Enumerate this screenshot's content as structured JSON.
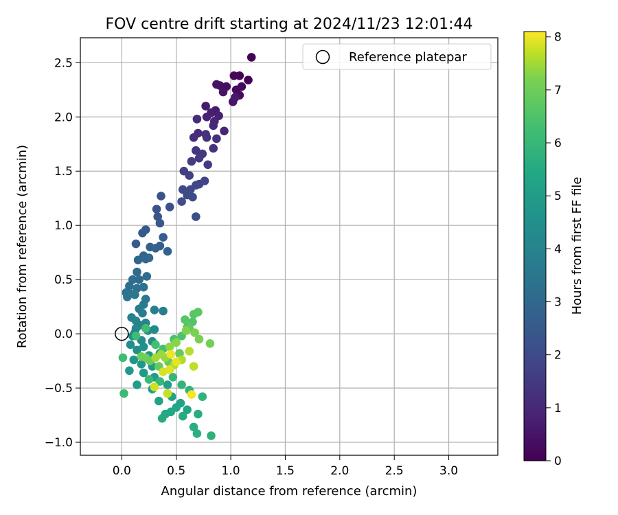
{
  "chart_data": {
    "type": "scatter",
    "title": "FOV centre drift starting at 2024/11/23 12:01:44",
    "xlabel": "Angular distance from reference (arcmin)",
    "ylabel": "Rotation from reference (arcmin)",
    "xlim": [
      -0.38,
      3.45
    ],
    "ylim": [
      -1.12,
      2.73
    ],
    "xticks": [
      0.0,
      0.5,
      1.0,
      1.5,
      2.0,
      2.5,
      3.0
    ],
    "xtick_labels": [
      "0.0",
      "0.5",
      "1.0",
      "1.5",
      "2.0",
      "2.5",
      "3.0"
    ],
    "yticks": [
      -1.0,
      -0.5,
      0.0,
      0.5,
      1.0,
      1.5,
      2.0,
      2.5
    ],
    "ytick_labels": [
      "−1.0",
      "−0.5",
      "0.0",
      "0.5",
      "1.0",
      "1.5",
      "2.0",
      "2.5"
    ],
    "grid": true,
    "legend_position": "top-right",
    "legend": [
      {
        "label": "Reference platepar",
        "marker": "open-circle"
      }
    ],
    "reference_point": {
      "x": 0.0,
      "y": 0.0
    },
    "colorbar": {
      "label": "Hours from first FF file",
      "range": [
        0,
        8.1
      ],
      "ticks": [
        0,
        1,
        2,
        3,
        4,
        5,
        6,
        7,
        8
      ],
      "tick_labels": [
        "0",
        "1",
        "2",
        "3",
        "4",
        "5",
        "6",
        "7",
        "8"
      ],
      "colormap": "viridis"
    },
    "series": [
      {
        "points": [
          [
            1.19,
            2.55,
            0.0
          ],
          [
            1.16,
            2.34,
            0.05
          ],
          [
            1.08,
            2.38,
            0.1
          ],
          [
            1.03,
            2.38,
            0.15
          ],
          [
            1.1,
            2.28,
            0.2
          ],
          [
            1.05,
            2.25,
            0.25
          ],
          [
            1.08,
            2.2,
            0.3
          ],
          [
            0.96,
            2.28,
            0.35
          ],
          [
            0.9,
            2.29,
            0.4
          ],
          [
            0.87,
            2.3,
            0.45
          ],
          [
            0.93,
            2.23,
            0.5
          ],
          [
            1.02,
            2.14,
            0.55
          ],
          [
            1.04,
            2.18,
            0.6
          ],
          [
            0.77,
            2.1,
            0.65
          ],
          [
            0.86,
            2.06,
            0.7
          ],
          [
            0.82,
            2.04,
            0.75
          ],
          [
            0.89,
            2.01,
            0.8
          ],
          [
            0.78,
            2.0,
            0.85
          ],
          [
            0.85,
            1.96,
            0.9
          ],
          [
            0.94,
            1.87,
            0.95
          ],
          [
            0.84,
            1.92,
            1.0
          ],
          [
            0.69,
            1.98,
            1.05
          ],
          [
            0.7,
            1.85,
            1.1
          ],
          [
            0.66,
            1.81,
            1.15
          ],
          [
            0.77,
            1.84,
            1.2
          ],
          [
            0.87,
            1.8,
            1.25
          ],
          [
            0.84,
            1.71,
            1.3
          ],
          [
            0.78,
            1.81,
            1.35
          ],
          [
            0.68,
            1.69,
            1.4
          ],
          [
            0.74,
            1.66,
            1.45
          ],
          [
            0.71,
            1.62,
            1.5
          ],
          [
            0.79,
            1.56,
            1.55
          ],
          [
            0.64,
            1.59,
            1.6
          ],
          [
            0.57,
            1.5,
            1.65
          ],
          [
            0.62,
            1.46,
            1.7
          ],
          [
            0.71,
            1.38,
            1.75
          ],
          [
            0.76,
            1.41,
            1.8
          ],
          [
            0.68,
            1.37,
            1.85
          ],
          [
            0.56,
            1.33,
            1.9
          ],
          [
            0.63,
            1.33,
            1.95
          ],
          [
            0.6,
            1.28,
            2.0
          ],
          [
            0.65,
            1.26,
            2.05
          ],
          [
            0.55,
            1.22,
            2.1
          ],
          [
            0.68,
            1.08,
            2.15
          ],
          [
            0.44,
            1.17,
            2.2
          ],
          [
            0.36,
            1.27,
            2.25
          ],
          [
            0.32,
            1.15,
            2.3
          ],
          [
            0.33,
            1.08,
            2.35
          ],
          [
            0.35,
            1.02,
            2.4
          ],
          [
            0.22,
            0.96,
            2.45
          ],
          [
            0.19,
            0.93,
            2.5
          ],
          [
            0.13,
            0.83,
            2.55
          ],
          [
            0.38,
            0.89,
            2.6
          ],
          [
            0.35,
            0.81,
            2.65
          ],
          [
            0.26,
            0.8,
            2.7
          ],
          [
            0.31,
            0.79,
            2.75
          ],
          [
            0.42,
            0.76,
            2.8
          ],
          [
            0.2,
            0.72,
            2.85
          ],
          [
            0.15,
            0.68,
            2.9
          ],
          [
            0.25,
            0.7,
            2.95
          ],
          [
            0.22,
            0.69,
            3.0
          ],
          [
            0.14,
            0.57,
            3.05
          ],
          [
            0.16,
            0.5,
            3.1
          ],
          [
            0.23,
            0.53,
            3.15
          ],
          [
            0.1,
            0.5,
            3.2
          ],
          [
            0.07,
            0.44,
            3.25
          ],
          [
            0.14,
            0.42,
            3.3
          ],
          [
            0.2,
            0.43,
            3.35
          ],
          [
            0.04,
            0.38,
            3.4
          ],
          [
            0.08,
            0.37,
            3.45
          ],
          [
            0.05,
            0.34,
            3.5
          ],
          [
            0.12,
            0.36,
            3.55
          ],
          [
            0.22,
            0.32,
            3.6
          ],
          [
            0.2,
            0.27,
            3.65
          ],
          [
            0.16,
            0.23,
            3.7
          ],
          [
            0.19,
            0.19,
            3.75
          ],
          [
            0.3,
            0.22,
            3.8
          ],
          [
            0.38,
            0.21,
            3.85
          ],
          [
            0.09,
            0.15,
            3.9
          ],
          [
            0.13,
            0.12,
            3.95
          ],
          [
            0.17,
            0.08,
            4.0
          ],
          [
            0.22,
            0.1,
            4.05
          ],
          [
            0.13,
            0.05,
            4.1
          ],
          [
            0.12,
            0.01,
            4.15
          ],
          [
            0.24,
            0.03,
            4.2
          ],
          [
            0.3,
            0.04,
            4.25
          ],
          [
            0.1,
            -0.02,
            4.3
          ],
          [
            0.18,
            -0.06,
            4.35
          ],
          [
            0.28,
            -0.07,
            4.4
          ],
          [
            0.08,
            -0.1,
            4.45
          ],
          [
            0.14,
            -0.15,
            4.5
          ],
          [
            0.2,
            -0.12,
            4.55
          ],
          [
            0.25,
            -0.2,
            4.6
          ],
          [
            0.35,
            -0.18,
            4.65
          ],
          [
            0.11,
            -0.24,
            4.7
          ],
          [
            0.18,
            -0.28,
            4.75
          ],
          [
            0.28,
            -0.3,
            4.8
          ],
          [
            0.07,
            -0.34,
            4.85
          ],
          [
            0.2,
            -0.36,
            4.9
          ],
          [
            0.3,
            -0.4,
            4.95
          ],
          [
            0.14,
            -0.47,
            5.0
          ],
          [
            0.28,
            -0.51,
            5.05
          ],
          [
            0.42,
            -0.47,
            5.1
          ],
          [
            0.34,
            -0.62,
            5.15
          ],
          [
            0.46,
            -0.58,
            5.2
          ],
          [
            0.54,
            -0.64,
            5.25
          ],
          [
            0.6,
            -0.7,
            5.3
          ],
          [
            0.5,
            -0.68,
            5.35
          ],
          [
            0.45,
            -0.72,
            5.4
          ],
          [
            0.4,
            -0.74,
            5.45
          ],
          [
            0.37,
            -0.78,
            5.5
          ],
          [
            0.56,
            -0.76,
            5.55
          ],
          [
            0.7,
            -0.74,
            5.6
          ],
          [
            0.66,
            -0.86,
            5.65
          ],
          [
            0.69,
            -0.92,
            5.7
          ],
          [
            0.82,
            -0.94,
            5.75
          ],
          [
            0.74,
            -0.58,
            5.8
          ],
          [
            0.62,
            -0.52,
            5.85
          ],
          [
            0.55,
            -0.47,
            5.9
          ],
          [
            0.47,
            -0.4,
            5.95
          ],
          [
            0.35,
            -0.44,
            6.0
          ],
          [
            0.25,
            -0.42,
            6.05
          ],
          [
            0.02,
            -0.55,
            6.1
          ],
          [
            0.01,
            -0.22,
            6.15
          ],
          [
            0.13,
            -0.02,
            6.2
          ],
          [
            0.22,
            0.05,
            6.25
          ],
          [
            0.31,
            -0.1,
            6.3
          ],
          [
            0.38,
            -0.14,
            6.35
          ],
          [
            0.48,
            -0.05,
            6.4
          ],
          [
            0.55,
            -0.02,
            6.45
          ],
          [
            0.6,
            0.06,
            6.5
          ],
          [
            0.65,
            0.11,
            6.55
          ],
          [
            0.58,
            0.13,
            6.6
          ],
          [
            0.66,
            0.18,
            6.65
          ],
          [
            0.7,
            0.2,
            6.7
          ],
          [
            0.62,
            0.05,
            6.75
          ],
          [
            0.53,
            -0.18,
            6.8
          ],
          [
            0.43,
            -0.26,
            6.85
          ],
          [
            0.34,
            -0.3,
            6.9
          ],
          [
            0.26,
            -0.25,
            6.95
          ],
          [
            0.22,
            -0.22,
            7.0
          ],
          [
            0.18,
            -0.21,
            7.05
          ],
          [
            0.81,
            -0.09,
            7.1
          ],
          [
            0.71,
            -0.05,
            7.15
          ],
          [
            0.67,
            0.01,
            7.2
          ],
          [
            0.59,
            0.03,
            7.25
          ],
          [
            0.5,
            -0.08,
            7.3
          ],
          [
            0.44,
            -0.12,
            7.35
          ],
          [
            0.4,
            -0.22,
            7.4
          ],
          [
            0.36,
            -0.19,
            7.45
          ],
          [
            0.31,
            -0.22,
            7.5
          ],
          [
            0.48,
            -0.29,
            7.55
          ],
          [
            0.55,
            -0.24,
            7.6
          ],
          [
            0.62,
            -0.16,
            7.65
          ],
          [
            0.66,
            -0.3,
            7.7
          ],
          [
            0.42,
            -0.55,
            7.75
          ],
          [
            0.3,
            -0.49,
            7.8
          ],
          [
            0.38,
            -0.35,
            7.85
          ],
          [
            0.44,
            -0.33,
            7.9
          ],
          [
            0.5,
            -0.26,
            7.95
          ],
          [
            0.45,
            -0.19,
            8.0
          ],
          [
            0.64,
            -0.56,
            8.05
          ]
        ]
      }
    ]
  }
}
